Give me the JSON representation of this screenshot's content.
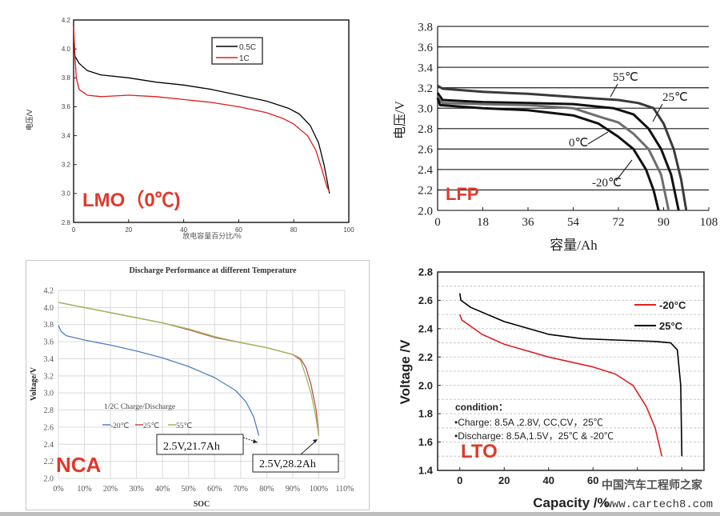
{
  "chart_data": [
    {
      "id": "lmo",
      "type": "line",
      "label": "LMO（0℃)",
      "ylabel": "电压/V",
      "xlabel": "放电容量百分比/%",
      "xlim": [
        0,
        100
      ],
      "ylim": [
        2.8,
        4.2
      ],
      "xticks": [
        0,
        20,
        40,
        60,
        80,
        100
      ],
      "yticks": [
        2.8,
        3.0,
        3.2,
        3.4,
        3.6,
        3.8,
        4.0,
        4.2
      ],
      "grid": false,
      "legend_position": "top-right",
      "series": [
        {
          "name": "0.5C",
          "color": "#000000",
          "points": [
            [
              0,
              4.04
            ],
            [
              0.5,
              3.95
            ],
            [
              2,
              3.9
            ],
            [
              5,
              3.85
            ],
            [
              10,
              3.82
            ],
            [
              20,
              3.8
            ],
            [
              30,
              3.77
            ],
            [
              40,
              3.75
            ],
            [
              50,
              3.72
            ],
            [
              60,
              3.68
            ],
            [
              70,
              3.64
            ],
            [
              78,
              3.59
            ],
            [
              82,
              3.55
            ],
            [
              86,
              3.47
            ],
            [
              89,
              3.35
            ],
            [
              91,
              3.2
            ],
            [
              92,
              3.1
            ],
            [
              93,
              3.0
            ]
          ]
        },
        {
          "name": "1C",
          "color": "#e01b1b",
          "points": [
            [
              0,
              4.16
            ],
            [
              0.5,
              3.95
            ],
            [
              1,
              3.8
            ],
            [
              2,
              3.72
            ],
            [
              5,
              3.68
            ],
            [
              10,
              3.67
            ],
            [
              20,
              3.68
            ],
            [
              30,
              3.67
            ],
            [
              40,
              3.65
            ],
            [
              50,
              3.63
            ],
            [
              60,
              3.6
            ],
            [
              70,
              3.56
            ],
            [
              76,
              3.52
            ],
            [
              80,
              3.48
            ],
            [
              85,
              3.4
            ],
            [
              88,
              3.3
            ],
            [
              90,
              3.18
            ],
            [
              92,
              3.05
            ],
            [
              93,
              3.01
            ]
          ]
        }
      ]
    },
    {
      "id": "lfp",
      "type": "line",
      "label": "LFP",
      "ylabel": "电压/V",
      "xlabel": "容量/Ah",
      "xlim": [
        0,
        108
      ],
      "ylim": [
        2.0,
        3.8
      ],
      "xticks": [
        0,
        18,
        36,
        54,
        72,
        90,
        108
      ],
      "yticks": [
        2.0,
        2.2,
        2.4,
        2.6,
        2.8,
        3.0,
        3.2,
        3.4,
        3.6,
        3.8
      ],
      "grid": "horizontal",
      "series": [
        {
          "name": "55℃",
          "color": "#3a3a3a",
          "points": [
            [
              0,
              3.22
            ],
            [
              2,
              3.19
            ],
            [
              18,
              3.16
            ],
            [
              36,
              3.14
            ],
            [
              54,
              3.11
            ],
            [
              72,
              3.08
            ],
            [
              80,
              3.05
            ],
            [
              86,
              3.0
            ],
            [
              90,
              2.85
            ],
            [
              94,
              2.6
            ],
            [
              97,
              2.3
            ],
            [
              99,
              2.0
            ]
          ]
        },
        {
          "name": "25℃",
          "color": "#111111",
          "points": [
            [
              0,
              3.15
            ],
            [
              2,
              3.08
            ],
            [
              18,
              3.06
            ],
            [
              36,
              3.05
            ],
            [
              54,
              3.04
            ],
            [
              70,
              3.0
            ],
            [
              78,
              2.94
            ],
            [
              84,
              2.8
            ],
            [
              89,
              2.6
            ],
            [
              93,
              2.35
            ],
            [
              96,
              2.0
            ]
          ]
        },
        {
          "name": "0℃",
          "color": "#6e6e6e",
          "points": [
            [
              0,
              3.1
            ],
            [
              2,
              3.05
            ],
            [
              18,
              3.04
            ],
            [
              36,
              3.03
            ],
            [
              54,
              3.0
            ],
            [
              64,
              2.92
            ],
            [
              72,
              2.86
            ],
            [
              78,
              2.75
            ],
            [
              84,
              2.6
            ],
            [
              89,
              2.35
            ],
            [
              92,
              2.0
            ]
          ]
        },
        {
          "name": "-20℃",
          "color": "#111111",
          "points": [
            [
              0,
              3.1
            ],
            [
              1,
              3.03
            ],
            [
              18,
              3.0
            ],
            [
              36,
              2.98
            ],
            [
              54,
              2.93
            ],
            [
              64,
              2.85
            ],
            [
              72,
              2.72
            ],
            [
              78,
              2.6
            ],
            [
              83,
              2.4
            ],
            [
              86,
              2.2
            ],
            [
              88,
              2.0
            ]
          ]
        }
      ]
    },
    {
      "id": "nca",
      "type": "line",
      "label": "NCA",
      "title": "Discharge Performance at different Temperature",
      "ylabel": "Voltage/V",
      "xlabel": "SOC",
      "xlim": [
        0,
        110
      ],
      "ylim": [
        2.0,
        4.2
      ],
      "xticks": [
        0,
        10,
        20,
        30,
        40,
        50,
        60,
        70,
        80,
        90,
        100,
        110
      ],
      "xtick_labels": [
        "0%",
        "10%",
        "20%",
        "30%",
        "40%",
        "50%",
        "60%",
        "70%",
        "80%",
        "90%",
        "100%",
        "110%"
      ],
      "yticks": [
        2.0,
        2.2,
        2.4,
        2.6,
        2.8,
        3.0,
        3.2,
        3.4,
        3.6,
        3.8,
        4.0,
        4.2
      ],
      "grid": "both",
      "legend_title": "1/2C Charge/Discharge",
      "legend_position": "center-left",
      "annotations": [
        "2.5V,21.7Ah",
        "2.5V,28.2Ah"
      ],
      "series": [
        {
          "name": "-20℃",
          "color": "#4f81bd",
          "points": [
            [
              0,
              3.79
            ],
            [
              1,
              3.72
            ],
            [
              3,
              3.67
            ],
            [
              10,
              3.62
            ],
            [
              20,
              3.56
            ],
            [
              30,
              3.49
            ],
            [
              40,
              3.41
            ],
            [
              50,
              3.31
            ],
            [
              60,
              3.18
            ],
            [
              68,
              3.03
            ],
            [
              72,
              2.9
            ],
            [
              75,
              2.72
            ],
            [
              77,
              2.5
            ]
          ]
        },
        {
          "name": "25℃",
          "color": "#c0504d",
          "points": [
            [
              0,
              4.06
            ],
            [
              10,
              4.0
            ],
            [
              20,
              3.94
            ],
            [
              30,
              3.88
            ],
            [
              40,
              3.82
            ],
            [
              50,
              3.74
            ],
            [
              60,
              3.65
            ],
            [
              70,
              3.59
            ],
            [
              80,
              3.53
            ],
            [
              90,
              3.45
            ],
            [
              93,
              3.4
            ],
            [
              95,
              3.3
            ],
            [
              97,
              3.1
            ],
            [
              99,
              2.8
            ],
            [
              100,
              2.5
            ]
          ]
        },
        {
          "name": "55℃",
          "color": "#9bbb59",
          "points": [
            [
              0,
              4.06
            ],
            [
              10,
              4.0
            ],
            [
              20,
              3.94
            ],
            [
              30,
              3.88
            ],
            [
              40,
              3.82
            ],
            [
              50,
              3.75
            ],
            [
              60,
              3.66
            ],
            [
              70,
              3.59
            ],
            [
              80,
              3.53
            ],
            [
              90,
              3.45
            ],
            [
              93,
              3.38
            ],
            [
              95,
              3.2
            ],
            [
              97,
              3.0
            ],
            [
              99,
              2.7
            ],
            [
              100,
              2.5
            ]
          ]
        }
      ]
    },
    {
      "id": "lto",
      "type": "line",
      "label": "LTO",
      "ylabel": "Voltage /V",
      "xlabel": "Capacity /%",
      "xlim": [
        -10,
        110
      ],
      "ylim": [
        1.4,
        2.8
      ],
      "xticks": [
        0,
        20,
        40,
        60,
        80,
        100
      ],
      "xtick_labels": [
        "0",
        "20",
        "40",
        "60",
        "",
        ""
      ],
      "yticks": [
        1.4,
        1.6,
        1.8,
        2.0,
        2.2,
        2.4,
        2.6,
        2.8
      ],
      "grid": "horizontal-dashed",
      "legend_position": "top-right",
      "condition": {
        "title": "condition：",
        "lines": [
          "•Charge: 8.5A ,2.8V, CC,CV，25℃",
          "•Discharge: 8.5A,1.5V，25℃ & -20℃"
        ]
      },
      "series": [
        {
          "name": "-20°C",
          "color": "#e02020",
          "points": [
            [
              0,
              2.5
            ],
            [
              1,
              2.46
            ],
            [
              10,
              2.36
            ],
            [
              20,
              2.29
            ],
            [
              40,
              2.2
            ],
            [
              60,
              2.13
            ],
            [
              70,
              2.08
            ],
            [
              78,
              2.0
            ],
            [
              84,
              1.85
            ],
            [
              88,
              1.7
            ],
            [
              91,
              1.5
            ]
          ]
        },
        {
          "name": "25°C",
          "color": "#000000",
          "points": [
            [
              0,
              2.65
            ],
            [
              0.5,
              2.6
            ],
            [
              5,
              2.55
            ],
            [
              20,
              2.45
            ],
            [
              40,
              2.36
            ],
            [
              55,
              2.33
            ],
            [
              70,
              2.32
            ],
            [
              88,
              2.31
            ],
            [
              95,
              2.3
            ],
            [
              98,
              2.25
            ],
            [
              99.5,
              2.0
            ],
            [
              100,
              1.5
            ]
          ]
        }
      ]
    }
  ],
  "watermark": {
    "name": "中国汽车工程师之家",
    "url": "www.cartech8.com"
  },
  "colors": {
    "panel_label": "#e0392b"
  }
}
